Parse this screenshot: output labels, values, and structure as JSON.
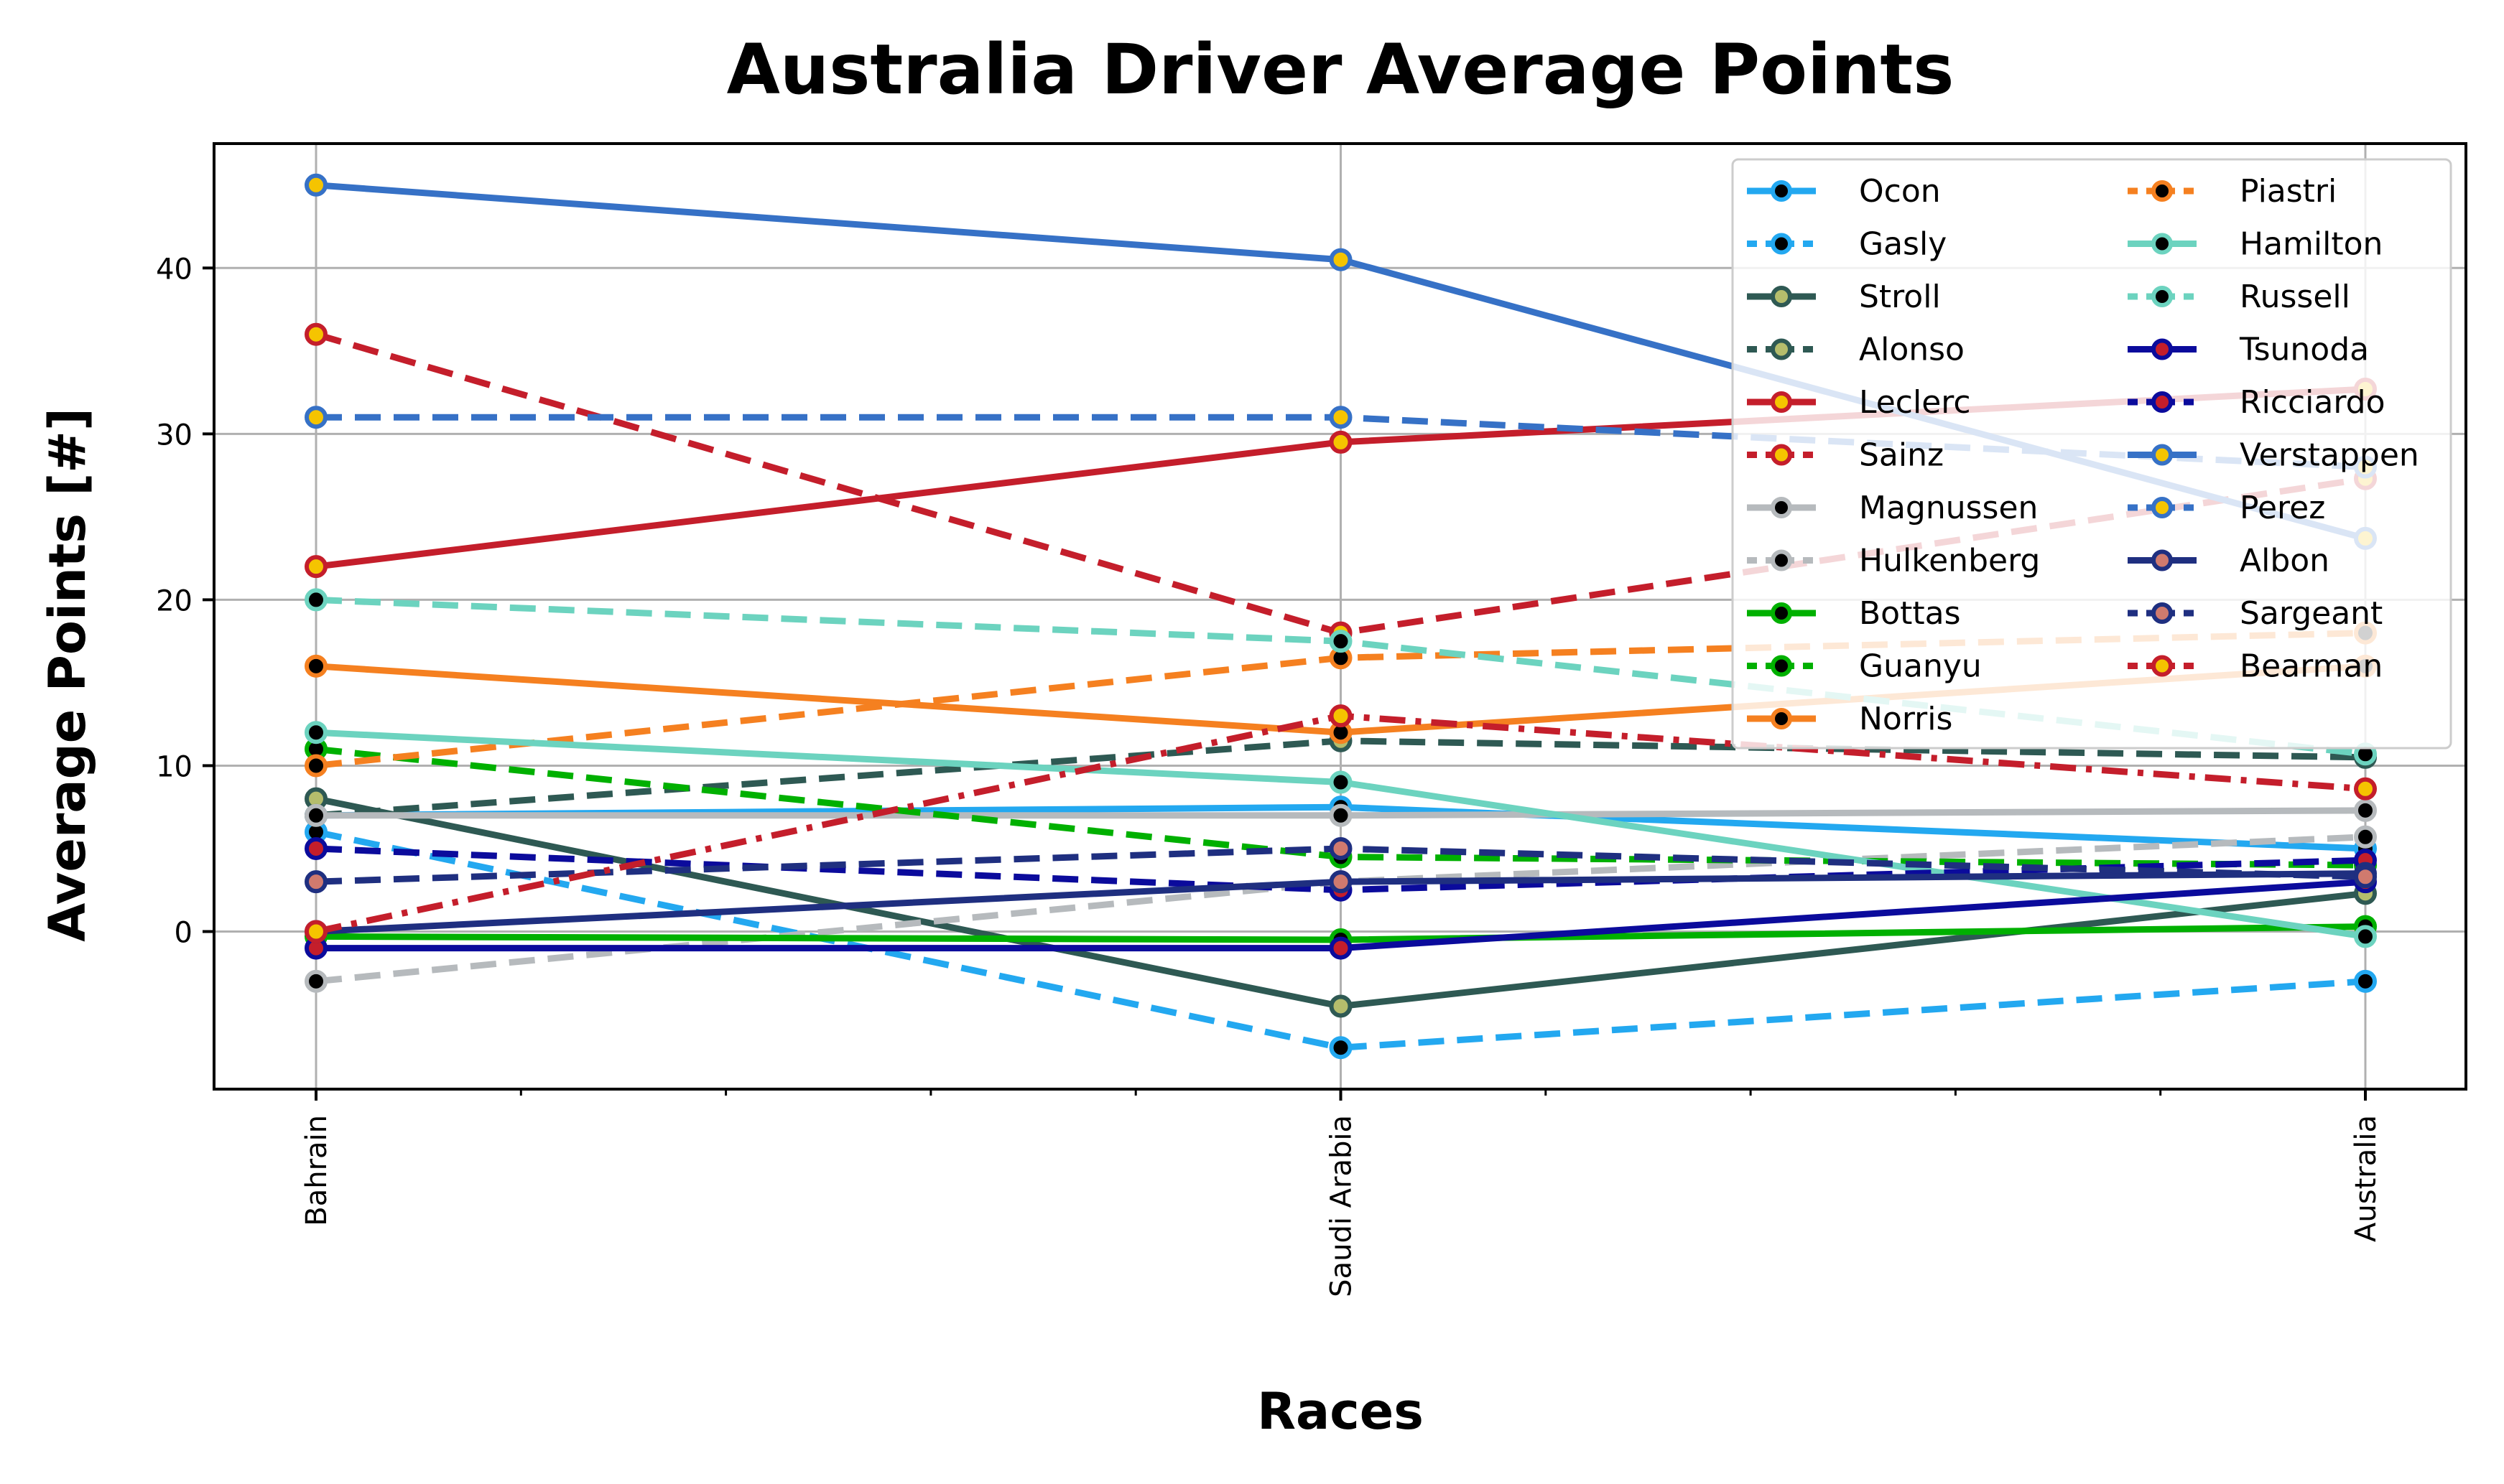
{
  "chart_data": {
    "type": "line",
    "title": "Australia Driver Average Points",
    "xlabel": "Races",
    "ylabel": "Average Points [#]",
    "categories": [
      "Bahrain",
      "Saudi Arabia",
      "Australia"
    ],
    "ylim": [
      -9.5,
      47.5
    ],
    "yticks": [
      0,
      10,
      20,
      30,
      40
    ],
    "grid": true,
    "legend_position": "top-right",
    "legend_columns": 2,
    "series": [
      {
        "name": "Ocon",
        "values": [
          7,
          7.5,
          5
        ],
        "color": "#23a8f0",
        "dash": "solid",
        "marker_fill": "#000000"
      },
      {
        "name": "Gasly",
        "values": [
          6,
          -7,
          -3
        ],
        "color": "#23a8f0",
        "dash": "dash",
        "marker_fill": "#000000"
      },
      {
        "name": "Stroll",
        "values": [
          8,
          -4.5,
          2.3
        ],
        "color": "#2e5953",
        "dash": "solid",
        "marker_fill": "#b5bd6c"
      },
      {
        "name": "Alonso",
        "values": [
          7,
          11.5,
          10.5
        ],
        "color": "#2e5953",
        "dash": "dash",
        "marker_fill": "#b5bd6c"
      },
      {
        "name": "Leclerc",
        "values": [
          22,
          29.5,
          32.7
        ],
        "color": "#c41e2b",
        "dash": "solid",
        "marker_fill": "#f5c400"
      },
      {
        "name": "Sainz",
        "values": [
          36,
          18,
          27.3
        ],
        "color": "#c41e2b",
        "dash": "dash",
        "marker_fill": "#f5c400"
      },
      {
        "name": "Magnussen",
        "values": [
          7,
          7,
          7.3
        ],
        "color": "#b6babd",
        "dash": "solid",
        "marker_fill": "#000000"
      },
      {
        "name": "Hulkenberg",
        "values": [
          -3,
          3,
          5.7
        ],
        "color": "#b6babd",
        "dash": "dash",
        "marker_fill": "#000000"
      },
      {
        "name": "Bottas",
        "values": [
          -0.3,
          -0.5,
          0.3
        ],
        "color": "#00b000",
        "dash": "solid",
        "marker_fill": "#000000"
      },
      {
        "name": "Guanyu",
        "values": [
          11,
          4.5,
          4
        ],
        "color": "#00b000",
        "dash": "dash",
        "marker_fill": "#000000"
      },
      {
        "name": "Norris",
        "values": [
          16,
          12,
          16
        ],
        "color": "#f58020",
        "dash": "solid",
        "marker_fill": "#000000"
      },
      {
        "name": "Piastri",
        "values": [
          10,
          16.5,
          18
        ],
        "color": "#f58020",
        "dash": "dash",
        "marker_fill": "#000000"
      },
      {
        "name": "Hamilton",
        "values": [
          12,
          9,
          -0.3
        ],
        "color": "#6cd3bf",
        "dash": "solid",
        "marker_fill": "#000000"
      },
      {
        "name": "Russell",
        "values": [
          20,
          17.5,
          10.7
        ],
        "color": "#6cd3bf",
        "dash": "dash",
        "marker_fill": "#000000"
      },
      {
        "name": "Tsunoda",
        "values": [
          -1,
          -1,
          3
        ],
        "color": "#0b0b9c",
        "dash": "solid",
        "marker_fill": "#c41e2b"
      },
      {
        "name": "Ricciardo",
        "values": [
          5,
          2.5,
          4.3
        ],
        "color": "#0b0b9c",
        "dash": "dash",
        "marker_fill": "#c41e2b"
      },
      {
        "name": "Verstappen",
        "values": [
          45,
          40.5,
          23.7
        ],
        "color": "#3671c6",
        "dash": "solid",
        "marker_fill": "#f5c400"
      },
      {
        "name": "Perez",
        "values": [
          31,
          31,
          28
        ],
        "color": "#3671c6",
        "dash": "dash",
        "marker_fill": "#f5c400"
      },
      {
        "name": "Albon",
        "values": [
          0,
          3,
          3.5
        ],
        "color": "#1f2f80",
        "dash": "solid",
        "marker_fill": "#d07a6e"
      },
      {
        "name": "Sargeant",
        "values": [
          3,
          5,
          3.3
        ],
        "color": "#1f2f80",
        "dash": "dash",
        "marker_fill": "#d07a6e"
      },
      {
        "name": "Bearman",
        "values": [
          0,
          13,
          8.6
        ],
        "color": "#c41e2b",
        "dash": "dashdot",
        "marker_fill": "#f5c400"
      }
    ]
  }
}
